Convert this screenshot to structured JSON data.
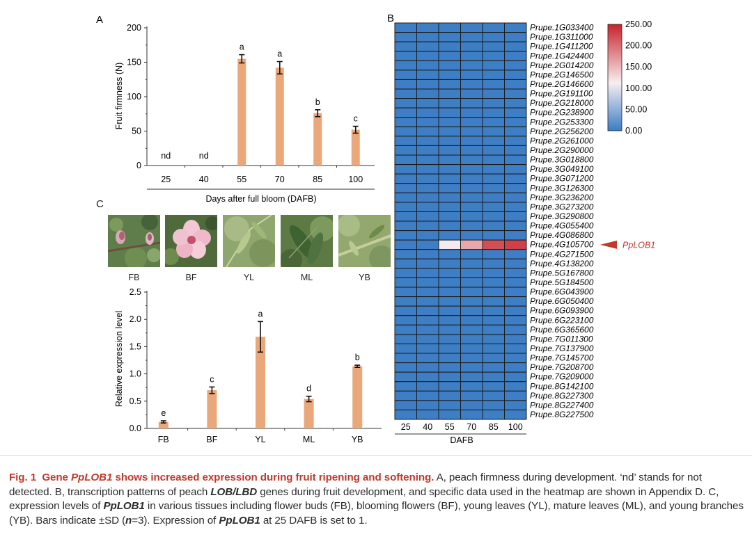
{
  "panel_labels": {
    "a": "A",
    "b": "B",
    "c": "C"
  },
  "colors": {
    "bar": "#eaa77a",
    "heat_low": "#3b7dc4",
    "heat_mid": "#f7eef0",
    "heat_high": "#c8232b",
    "accent": "#c0392b"
  },
  "chart_data": [
    {
      "id": "A",
      "type": "bar",
      "title": "",
      "xlabel": "Days after full bloom (DAFB)",
      "ylabel": "Fruit firmness (N)",
      "categories": [
        "25",
        "40",
        "55",
        "70",
        "85",
        "100"
      ],
      "values": [
        null,
        null,
        155,
        142,
        76,
        52
      ],
      "errors": [
        0,
        0,
        6,
        9,
        5,
        5
      ],
      "annotations": [
        "nd",
        "nd",
        "a",
        "a",
        "b",
        "c"
      ],
      "yticks": [
        "0",
        "50",
        "100",
        "150",
        "200"
      ],
      "ylim": [
        0,
        200
      ]
    },
    {
      "id": "B",
      "type": "heatmap",
      "xlabel": "DAFB",
      "columns": [
        "25",
        "40",
        "55",
        "70",
        "85",
        "100"
      ],
      "rows": [
        "Prupe.1G033400",
        "Prupe.1G311000",
        "Prupe.1G411200",
        "Prupe.1G424400",
        "Prupe.2G014200",
        "Prupe.2G146500",
        "Prupe.2G146600",
        "Prupe.2G191100",
        "Prupe.2G218000",
        "Prupe.2G238900",
        "Prupe.2G253300",
        "Prupe.2G256200",
        "Prupe.2G261000",
        "Prupe.2G290000",
        "Prupe.3G018800",
        "Prupe.3G049100",
        "Prupe.3G071200",
        "Prupe.3G126300",
        "Prupe.3G236200",
        "Prupe.3G273200",
        "Prupe.3G290800",
        "Prupe.4G055400",
        "Prupe.4G086800",
        "Prupe.4G105700",
        "Prupe.4G271500",
        "Prupe.4G138200",
        "Prupe.5G167800",
        "Prupe.5G184500",
        "Prupe.6G043900",
        "Prupe.6G050400",
        "Prupe.6G093900",
        "Prupe.6G223100",
        "Prupe.6G365600",
        "Prupe.7G011300",
        "Prupe.7G137900",
        "Prupe.7G145700",
        "Prupe.7G208700",
        "Prupe.7G209000",
        "Prupe.8G142100",
        "Prupe.8G227300",
        "Prupe.8G227400",
        "Prupe.8G227500"
      ],
      "highlight": {
        "row": "Prupe.4G105700",
        "values": [
          1,
          1,
          110,
          160,
          220,
          230
        ],
        "label": "PpLOB1"
      },
      "colorbar": {
        "ticks": [
          "250.00",
          "200.00",
          "150.00",
          "100.00",
          "50.00",
          "0.00"
        ],
        "min": 0,
        "max": 250
      }
    },
    {
      "id": "C",
      "type": "bar",
      "xlabel": "",
      "ylabel": "Relative expression level",
      "categories": [
        "FB",
        "BF",
        "YL",
        "ML",
        "YB"
      ],
      "values": [
        0.12,
        0.7,
        1.68,
        0.54,
        1.14
      ],
      "errors": [
        0.02,
        0.06,
        0.28,
        0.05,
        0.02
      ],
      "annotations": [
        "e",
        "c",
        "a",
        "d",
        "b"
      ],
      "yticks": [
        "0.0",
        "0.5",
        "1.0",
        "1.5",
        "2.0",
        "2.5"
      ],
      "ylim": [
        0,
        2.5
      ]
    }
  ],
  "photos": [
    {
      "label": "FB",
      "icon": "flower-bud-photo"
    },
    {
      "label": "BF",
      "icon": "blooming-flower-photo"
    },
    {
      "label": "YL",
      "icon": "young-leaves-photo"
    },
    {
      "label": "ML",
      "icon": "mature-leaves-photo"
    },
    {
      "label": "YB",
      "icon": "young-branch-photo"
    }
  ],
  "caption": {
    "figno": "Fig. 1",
    "gene": "Gene",
    "gene_name": "PpLOB1",
    "title_rest": "shows increased expression during fruit ripening and softening.",
    "s1": " A, peach firmness during development. ‘nd’ stands for not detected. B, transcription patterns of peach ",
    "family": "LOB/LBD",
    "s2": " genes during fruit development, and specific data used in the heatmap are shown in Appendix D. C, expression levels of ",
    "g2": "PpLOB1",
    "s3": " in various tissues including flower buds (FB), blooming flowers (BF), young leaves (YL), mature leaves (ML), and young branches (YB). Bars indicate ±SD (",
    "n": "n",
    "s4": "=3). Expression of ",
    "g3": "PpLOB1",
    "s5": " at 25 DAFB is set to 1."
  }
}
